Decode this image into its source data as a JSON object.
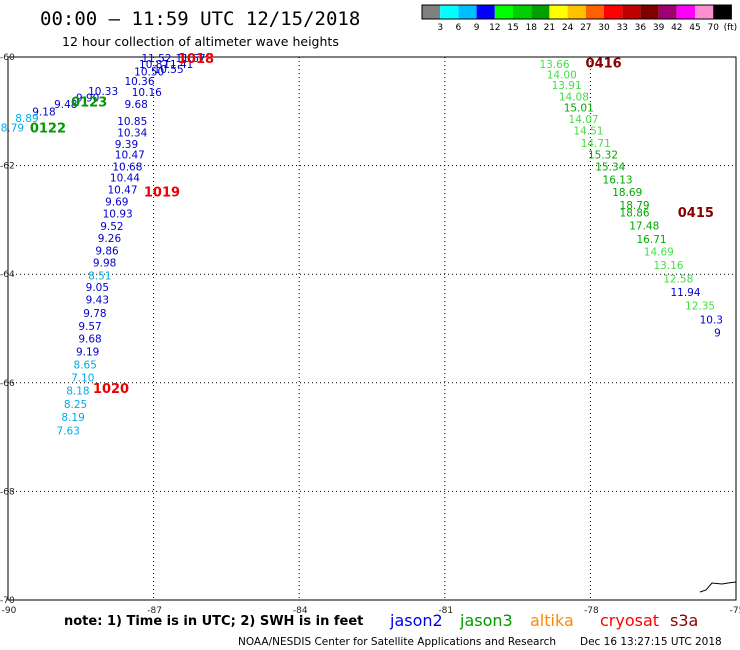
{
  "header": {
    "title": "00:00 – 11:59 UTC 12/15/2018",
    "subtitle": "12 hour collection of altimeter wave heights"
  },
  "colorbar": {
    "colors": [
      "#808080",
      "#00ffff",
      "#00bfff",
      "#0000ff",
      "#00ff00",
      "#00d000",
      "#00a000",
      "#ffff00",
      "#ffc000",
      "#ff6000",
      "#ff0000",
      "#c00000",
      "#800000",
      "#a00070",
      "#ff00ff",
      "#ff90d0",
      "#000000"
    ],
    "labels": [
      "3",
      "6",
      "9",
      "12",
      "15",
      "18",
      "21",
      "24",
      "27",
      "30",
      "33",
      "36",
      "39",
      "42",
      "45",
      "70"
    ],
    "unit": "(ft)"
  },
  "chart_data": {
    "type": "scatter",
    "xlim": [
      -90,
      -75
    ],
    "ylim": [
      -70,
      -60
    ],
    "x_ticks": [
      -90,
      -87,
      -84,
      -81,
      -78,
      -75
    ],
    "y_ticks": [
      -60,
      -62,
      -64,
      -66,
      -68,
      -70
    ],
    "grid": true,
    "units": "ft",
    "series": [
      {
        "name": "jason2",
        "color": "#0000dd"
      },
      {
        "name": "jason3",
        "color": "#009900"
      },
      {
        "name": "altika",
        "color": "#ff8800"
      },
      {
        "name": "cryosat",
        "color": "#ff0000"
      },
      {
        "name": "s3a",
        "color": "#aa0000"
      }
    ],
    "pass_labels": [
      {
        "text": "1018",
        "lon": -86.5,
        "lat": -60.02,
        "color": "#ee0000"
      },
      {
        "text": "0123",
        "lon": -88.7,
        "lat": -60.82,
        "color": "#009900"
      },
      {
        "text": "0122",
        "lon": -89.55,
        "lat": -61.3,
        "color": "#009900"
      },
      {
        "text": "1019",
        "lon": -87.2,
        "lat": -62.48,
        "color": "#ee0000"
      },
      {
        "text": "1020",
        "lon": -88.25,
        "lat": -66.1,
        "color": "#ee0000"
      },
      {
        "text": "0416",
        "lon": -78.1,
        "lat": -60.1,
        "color": "#880000"
      },
      {
        "text": "0415",
        "lon": -76.2,
        "lat": -62.85,
        "color": "#880000"
      }
    ],
    "tracks": [
      {
        "name": "track-1018",
        "points": [
          {
            "lon": -87.25,
            "lat": -60.02,
            "v": "11.52",
            "color": "#0000cc"
          },
          {
            "lon": -86.55,
            "lat": -60.02,
            "v": "11.67",
            "color": "#0000cc"
          },
          {
            "lon": -86.8,
            "lat": -60.13,
            "v": "11.41",
            "color": "#0000cc"
          },
          {
            "lon": -87.3,
            "lat": -60.13,
            "v": "10.87",
            "color": "#0000cc"
          },
          {
            "lon": -87.0,
            "lat": -60.22,
            "v": "10.55",
            "color": "#0000cc"
          },
          {
            "lon": -87.4,
            "lat": -60.27,
            "v": "10.50",
            "color": "#0000cc"
          },
          {
            "lon": -87.6,
            "lat": -60.44,
            "v": "10.36",
            "color": "#0000cc"
          },
          {
            "lon": -87.45,
            "lat": -60.64,
            "v": "10.16",
            "color": "#0000cc"
          },
          {
            "lon": -88.35,
            "lat": -60.63,
            "v": "10.33",
            "color": "#0000cc"
          },
          {
            "lon": -88.6,
            "lat": -60.75,
            "v": "9.90",
            "color": "#0000cc"
          },
          {
            "lon": -89.05,
            "lat": -60.87,
            "v": "9.48",
            "color": "#0000cc"
          },
          {
            "lon": -87.6,
            "lat": -60.87,
            "v": "9.68",
            "color": "#0000cc"
          },
          {
            "lon": -89.5,
            "lat": -61.0,
            "v": "9.18",
            "color": "#0000cc"
          },
          {
            "lon": -89.85,
            "lat": -61.12,
            "v": "8.89",
            "color": "#00aaee"
          },
          {
            "lon": -90.15,
            "lat": -61.3,
            "v": "8.79",
            "color": "#00aaee"
          }
        ]
      },
      {
        "name": "track-1019",
        "points": [
          {
            "lon": -87.75,
            "lat": -61.18,
            "v": "10.85",
            "color": "#0000cc"
          },
          {
            "lon": -87.75,
            "lat": -61.39,
            "v": "10.34",
            "color": "#0000cc"
          },
          {
            "lon": -87.8,
            "lat": -61.6,
            "v": "9.39",
            "color": "#0000cc"
          },
          {
            "lon": -87.8,
            "lat": -61.8,
            "v": "10.47",
            "color": "#0000cc"
          },
          {
            "lon": -87.85,
            "lat": -62.02,
            "v": "10.68",
            "color": "#0000cc"
          },
          {
            "lon": -87.9,
            "lat": -62.22,
            "v": "10.44",
            "color": "#0000cc"
          },
          {
            "lon": -87.95,
            "lat": -62.44,
            "v": "10.47",
            "color": "#0000cc"
          },
          {
            "lon": -88.0,
            "lat": -62.66,
            "v": "9.69",
            "color": "#0000cc"
          },
          {
            "lon": -88.05,
            "lat": -62.88,
            "v": "10.93",
            "color": "#0000cc"
          },
          {
            "lon": -88.1,
            "lat": -63.11,
            "v": "9.52",
            "color": "#0000cc"
          },
          {
            "lon": -88.15,
            "lat": -63.33,
            "v": "9.26",
            "color": "#0000cc"
          },
          {
            "lon": -88.2,
            "lat": -63.56,
            "v": "9.86",
            "color": "#0000cc"
          },
          {
            "lon": -88.25,
            "lat": -63.78,
            "v": "9.98",
            "color": "#0000cc"
          },
          {
            "lon": -88.35,
            "lat": -64.02,
            "v": "8.51",
            "color": "#00aaee"
          },
          {
            "lon": -88.4,
            "lat": -64.24,
            "v": "9.05",
            "color": "#0000cc"
          },
          {
            "lon": -88.4,
            "lat": -64.47,
            "v": "9.43",
            "color": "#0000cc"
          },
          {
            "lon": -88.45,
            "lat": -64.71,
            "v": "9.78",
            "color": "#0000cc"
          },
          {
            "lon": -88.55,
            "lat": -64.95,
            "v": "9.57",
            "color": "#0000cc"
          },
          {
            "lon": -88.55,
            "lat": -65.18,
            "v": "9.68",
            "color": "#0000cc"
          },
          {
            "lon": -88.6,
            "lat": -65.42,
            "v": "9.19",
            "color": "#0000cc"
          },
          {
            "lon": -88.65,
            "lat": -65.66,
            "v": "8.65",
            "color": "#00aaee"
          },
          {
            "lon": -88.7,
            "lat": -65.9,
            "v": "7.10",
            "color": "#00aaee"
          },
          {
            "lon": -88.8,
            "lat": -66.14,
            "v": "8.18",
            "color": "#00aaee"
          },
          {
            "lon": -88.85,
            "lat": -66.39,
            "v": "8.25",
            "color": "#00aaee"
          },
          {
            "lon": -88.9,
            "lat": -66.63,
            "v": "8.19",
            "color": "#00aaee"
          },
          {
            "lon": -89.0,
            "lat": -66.88,
            "v": "7.63",
            "color": "#00aaee"
          }
        ]
      },
      {
        "name": "track-0416",
        "points": [
          {
            "lon": -79.05,
            "lat": -60.13,
            "v": "13.66",
            "color": "#44dd44"
          },
          {
            "lon": -78.9,
            "lat": -60.32,
            "v": "14.00",
            "color": "#44dd44"
          },
          {
            "lon": -78.8,
            "lat": -60.52,
            "v": "13.91",
            "color": "#44dd44"
          },
          {
            "lon": -78.65,
            "lat": -60.73,
            "v": "14.08",
            "color": "#44dd44"
          },
          {
            "lon": -78.55,
            "lat": -60.93,
            "v": "15.01",
            "color": "#00aa00"
          },
          {
            "lon": -78.45,
            "lat": -61.14,
            "v": "14.07",
            "color": "#44dd44"
          },
          {
            "lon": -78.35,
            "lat": -61.35,
            "v": "14.51",
            "color": "#44dd44"
          },
          {
            "lon": -78.2,
            "lat": -61.58,
            "v": "14.71",
            "color": "#44dd44"
          },
          {
            "lon": -78.05,
            "lat": -61.8,
            "v": "15.32",
            "color": "#00aa00"
          },
          {
            "lon": -77.9,
            "lat": -62.02,
            "v": "15.34",
            "color": "#00aa00"
          },
          {
            "lon": -77.75,
            "lat": -62.26,
            "v": "16.13",
            "color": "#00aa00"
          },
          {
            "lon": -77.55,
            "lat": -62.49,
            "v": "18.69",
            "color": "#00aa00"
          },
          {
            "lon": -77.4,
            "lat": -62.73,
            "v": "18.79",
            "color": "#00aa00"
          },
          {
            "lon": -77.4,
            "lat": -62.86,
            "v": "18.86",
            "color": "#00aa00"
          },
          {
            "lon": -77.2,
            "lat": -63.1,
            "v": "17.48",
            "color": "#00aa00"
          },
          {
            "lon": -77.05,
            "lat": -63.35,
            "v": "16.71",
            "color": "#00aa00"
          },
          {
            "lon": -76.9,
            "lat": -63.58,
            "v": "14.69",
            "color": "#44dd44"
          },
          {
            "lon": -76.7,
            "lat": -63.83,
            "v": "13.16",
            "color": "#44dd44"
          },
          {
            "lon": -76.5,
            "lat": -64.08,
            "v": "12.58",
            "color": "#44dd44"
          },
          {
            "lon": -76.35,
            "lat": -64.33,
            "v": "11.94",
            "color": "#0000cc"
          },
          {
            "lon": -76.05,
            "lat": -64.58,
            "v": "12.35",
            "color": "#44dd44"
          },
          {
            "lon": -75.75,
            "lat": -64.83,
            "v": "10.3",
            "color": "#0000cc"
          },
          {
            "lon": -75.45,
            "lat": -65.07,
            "v": "9",
            "color": "#0000cc"
          }
        ]
      }
    ]
  },
  "footer": {
    "note": "note:  1) Time is in UTC;  2) SWH is in feet",
    "missions": [
      {
        "name": "jason2",
        "color": "#0000ee"
      },
      {
        "name": "jason3",
        "color": "#009900"
      },
      {
        "name": "altika",
        "color": "#ff8800"
      },
      {
        "name": "cryosat",
        "color": "#ff0000"
      },
      {
        "name": "s3a",
        "color": "#880000"
      }
    ],
    "credit": "NOAA/NESDIS Center for Satellite Applications and Research",
    "timestamp": "Dec 16 13:27:15 UTC 2018"
  }
}
